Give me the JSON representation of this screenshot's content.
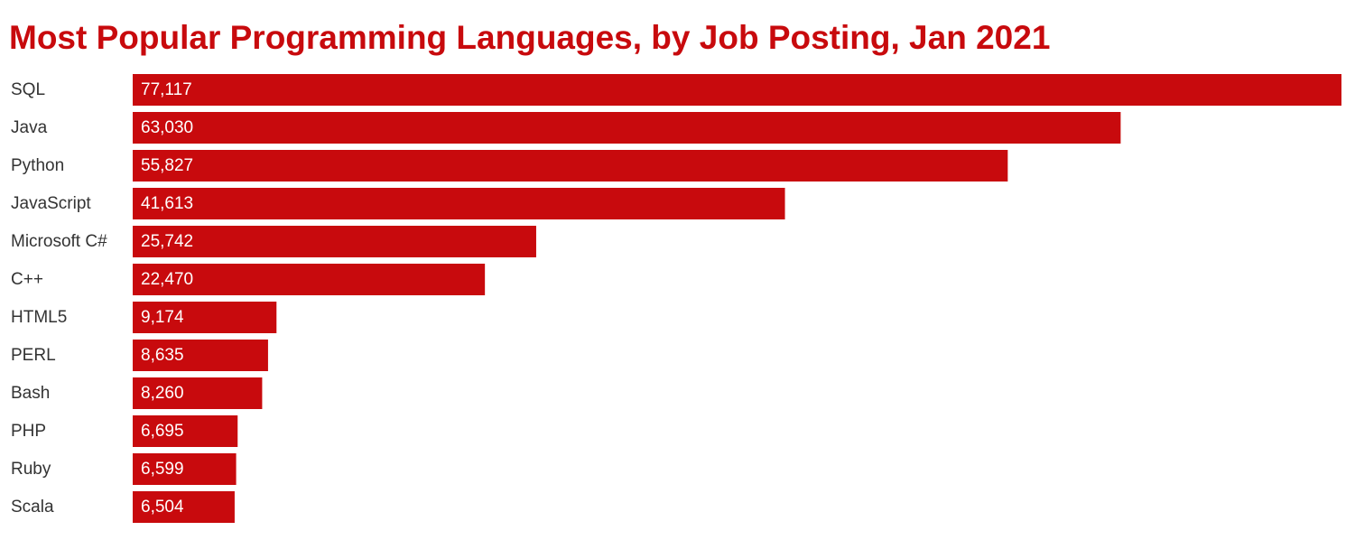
{
  "chart_data": {
    "type": "bar",
    "orientation": "horizontal",
    "title": "Most Popular Programming Languages, by Job Posting, Jan 2021",
    "xlabel": "",
    "ylabel": "",
    "categories": [
      "SQL",
      "Java",
      "Python",
      "JavaScript",
      "Microsoft C#",
      "C++",
      "HTML5",
      "PERL",
      "Bash",
      "PHP",
      "Ruby",
      "Scala"
    ],
    "values": [
      77117,
      63030,
      55827,
      41613,
      25742,
      22470,
      9174,
      8635,
      8260,
      6695,
      6599,
      6504
    ],
    "value_labels": [
      "77,117",
      "63,030",
      "55,827",
      "41,613",
      "25,742",
      "22,470",
      "9,174",
      "8,635",
      "8,260",
      "6,695",
      "6,599",
      "6,504"
    ],
    "xlim": [
      0,
      77117
    ],
    "grid": false,
    "legend": "none",
    "colors": {
      "bar": "#c80a0d",
      "title": "#c80a0d",
      "category_text": "#333333",
      "value_text": "#ffffff"
    }
  }
}
